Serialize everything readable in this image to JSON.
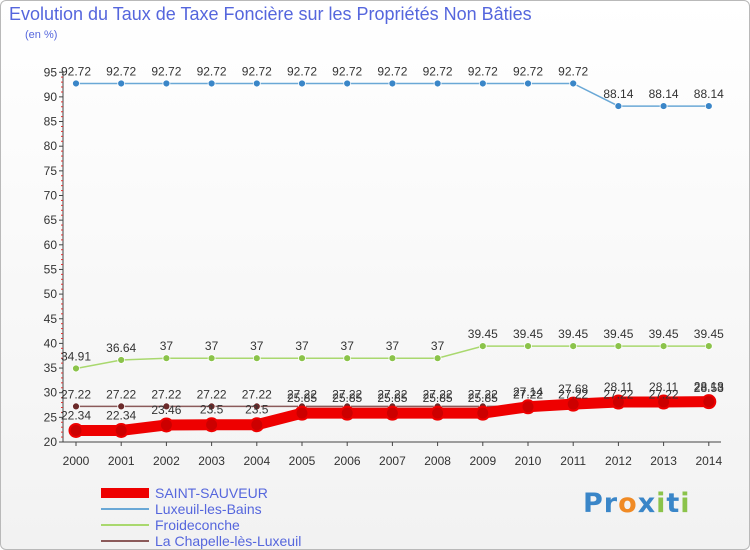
{
  "header": {
    "title": "Evolution du Taux de Taxe Foncière sur les Propriétés Non Bâties",
    "unit": "(en %)"
  },
  "brand": {
    "text": "Proxiti",
    "letters": [
      "P",
      "r",
      "o",
      "x",
      "i",
      "t",
      "i"
    ],
    "colors": [
      "#3a86c8",
      "#3a86c8",
      "#f08a24",
      "#3a86c8",
      "#8bc34a",
      "#3a86c8",
      "#8bc34a"
    ]
  },
  "chart_data": {
    "type": "line",
    "title": "Evolution du Taux de Taxe Foncière sur les Propriétés Non Bâties",
    "ylabel": "(en %)",
    "xlabel": "",
    "ylim": [
      20,
      95
    ],
    "yticks": [
      20,
      25,
      30,
      35,
      40,
      45,
      50,
      55,
      60,
      65,
      70,
      75,
      80,
      85,
      90,
      95
    ],
    "categories": [
      "2000",
      "2001",
      "2002",
      "2003",
      "2004",
      "2005",
      "2006",
      "2007",
      "2008",
      "2009",
      "2010",
      "2011",
      "2012",
      "2013",
      "2014"
    ],
    "grid": false,
    "legend_position": "bottom-left",
    "series": [
      {
        "name": "Luxeuil-les-Bains",
        "color": "#6aa8d6",
        "marker_color": "#3a86c8",
        "values": [
          92.72,
          92.72,
          92.72,
          92.72,
          92.72,
          92.72,
          92.72,
          92.72,
          92.72,
          92.72,
          92.72,
          92.72,
          88.14,
          88.14,
          88.14
        ],
        "labels": [
          "92.72",
          "92.72",
          "92.72",
          "92.72",
          "92.72",
          "92.72",
          "92.72",
          "92.72",
          "92.72",
          "92.72",
          "92.72",
          "92.72",
          "88.14",
          "88.14",
          "88.14"
        ]
      },
      {
        "name": "Froideconche",
        "color": "#a9d86e",
        "marker_color": "#8bc34a",
        "values": [
          34.91,
          36.64,
          37,
          37,
          37,
          37,
          37,
          37,
          37,
          39.45,
          39.45,
          39.45,
          39.45,
          39.45,
          39.45
        ],
        "labels": [
          "34.91",
          "36.64",
          "37",
          "37",
          "37",
          "37",
          "37",
          "37",
          "37",
          "39.45",
          "39.45",
          "39.45",
          "39.45",
          "39.45",
          "39.45"
        ]
      },
      {
        "name": "La Chapelle-lès-Luxeuil",
        "color": "#8b5a5a",
        "marker_color": "#6b2a2a",
        "values": [
          27.22,
          27.22,
          27.22,
          27.22,
          27.22,
          27.22,
          27.22,
          27.22,
          27.22,
          27.22,
          27.22,
          27.22,
          27.22,
          27.22,
          28.53
        ],
        "labels": [
          "27.22",
          "27.22",
          "27.22",
          "27.22",
          "27.22",
          "27.22",
          "27.22",
          "27.22",
          "27.22",
          "27.22",
          "27.22",
          "27.22",
          "27.22",
          "27.22",
          "28.53"
        ]
      },
      {
        "name": "SAINT-SAUVEUR",
        "color": "#ee0000",
        "marker_color": "#cc0000",
        "thick": true,
        "values": [
          22.34,
          22.34,
          23.46,
          23.5,
          23.5,
          25.85,
          25.85,
          25.85,
          25.85,
          25.85,
          27.14,
          27.68,
          28.11,
          28.11,
          28.18
        ],
        "labels": [
          "22.34",
          "22.34",
          "23.46",
          "23.5",
          "23.5",
          "25.85",
          "25.85",
          "25.85",
          "25.85",
          "25.85",
          "27.14",
          "27.68",
          "28.11",
          "28.11",
          "28.18"
        ]
      }
    ],
    "legend": [
      "SAINT-SAUVEUR",
      "Luxeuil-les-Bains",
      "Froideconche",
      "La Chapelle-lès-Luxeuil"
    ]
  }
}
